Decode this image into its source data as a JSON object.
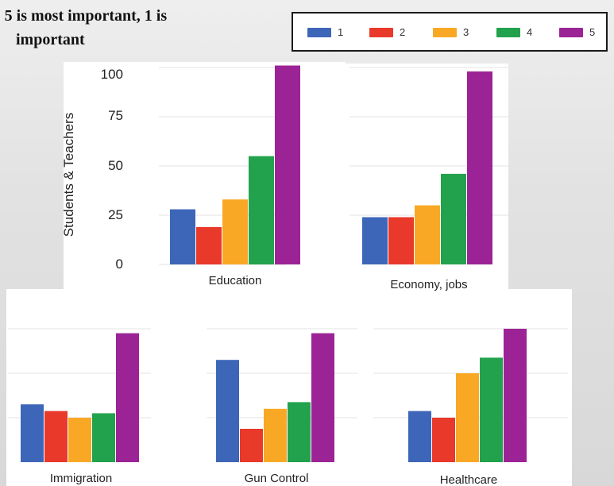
{
  "heading": {
    "line1": ": 5 is most important, 1 is",
    "line2": "important"
  },
  "legend": {
    "items": [
      {
        "label": "1",
        "color": "#3d66b8"
      },
      {
        "label": "2",
        "color": "#e8392a"
      },
      {
        "label": "3",
        "color": "#f9a825"
      },
      {
        "label": "4",
        "color": "#23a24d"
      },
      {
        "label": "5",
        "color": "#9c2396"
      }
    ]
  },
  "chart_data": [
    {
      "type": "bar",
      "categories": [
        "Education"
      ],
      "series": [
        {
          "name": "1",
          "values": [
            28
          ]
        },
        {
          "name": "2",
          "values": [
            19
          ]
        },
        {
          "name": "3",
          "values": [
            33
          ]
        },
        {
          "name": "4",
          "values": [
            55
          ]
        },
        {
          "name": "5",
          "values": [
            101
          ]
        }
      ],
      "ylabel": "Students & Teachers",
      "yticks": [
        "0",
        "25",
        "50",
        "75",
        "100"
      ],
      "ylim": [
        0,
        100
      ],
      "grid": true
    },
    {
      "type": "bar",
      "categories": [
        "Economy, jobs"
      ],
      "series": [
        {
          "name": "1",
          "values": [
            24
          ]
        },
        {
          "name": "2",
          "values": [
            24
          ]
        },
        {
          "name": "3",
          "values": [
            30
          ]
        },
        {
          "name": "4",
          "values": [
            46
          ]
        },
        {
          "name": "5",
          "values": [
            98
          ]
        }
      ],
      "ylim": [
        0,
        100
      ],
      "grid": true
    },
    {
      "type": "bar",
      "categories": [
        "Immigration"
      ],
      "series": [
        {
          "name": "1",
          "values": [
            26
          ]
        },
        {
          "name": "2",
          "values": [
            23
          ]
        },
        {
          "name": "3",
          "values": [
            20
          ]
        },
        {
          "name": "4",
          "values": [
            22
          ]
        },
        {
          "name": "5",
          "values": [
            58
          ]
        }
      ],
      "ylim": [
        0,
        75
      ],
      "grid": true
    },
    {
      "type": "bar",
      "categories": [
        "Gun Control"
      ],
      "series": [
        {
          "name": "1",
          "values": [
            46
          ]
        },
        {
          "name": "2",
          "values": [
            15
          ]
        },
        {
          "name": "3",
          "values": [
            24
          ]
        },
        {
          "name": "4",
          "values": [
            27
          ]
        },
        {
          "name": "5",
          "values": [
            58
          ]
        }
      ],
      "ylim": [
        0,
        75
      ],
      "grid": true
    },
    {
      "type": "bar",
      "categories": [
        "Healthcare"
      ],
      "series": [
        {
          "name": "1",
          "values": [
            23
          ]
        },
        {
          "name": "2",
          "values": [
            20
          ]
        },
        {
          "name": "3",
          "values": [
            40
          ]
        },
        {
          "name": "4",
          "values": [
            47
          ]
        },
        {
          "name": "5",
          "values": [
            60
          ]
        }
      ],
      "ylim": [
        0,
        75
      ],
      "grid": true
    }
  ]
}
